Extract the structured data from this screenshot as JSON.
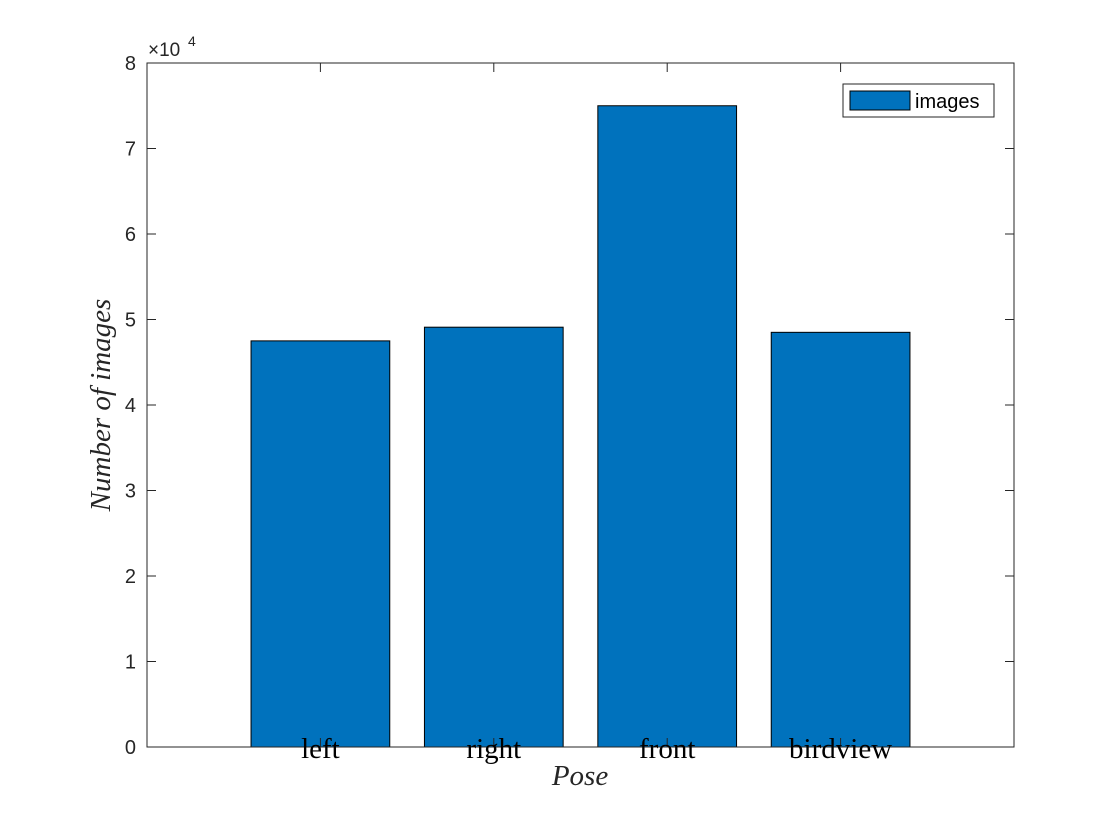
{
  "chart_data": {
    "type": "bar",
    "categories": [
      "left",
      "right",
      "front",
      "birdview"
    ],
    "series": [
      {
        "name": "images",
        "values": [
          47500,
          49100,
          75000,
          48500
        ]
      }
    ],
    "xlabel": "Pose",
    "ylabel": "Number of images",
    "ylim": [
      0,
      80000
    ],
    "yticks": [
      0,
      1,
      2,
      3,
      4,
      5,
      6,
      7,
      8
    ],
    "ytick_labels": [
      "0",
      "1",
      "2",
      "3",
      "4",
      "5",
      "6",
      "7",
      "8"
    ],
    "y_multiplier_base": "×10",
    "y_multiplier_exp": "4",
    "grid": false,
    "legend_position": "top-right",
    "colors": {
      "bar": "#0072BD",
      "axis": "#262626",
      "background": "#ffffff"
    }
  }
}
